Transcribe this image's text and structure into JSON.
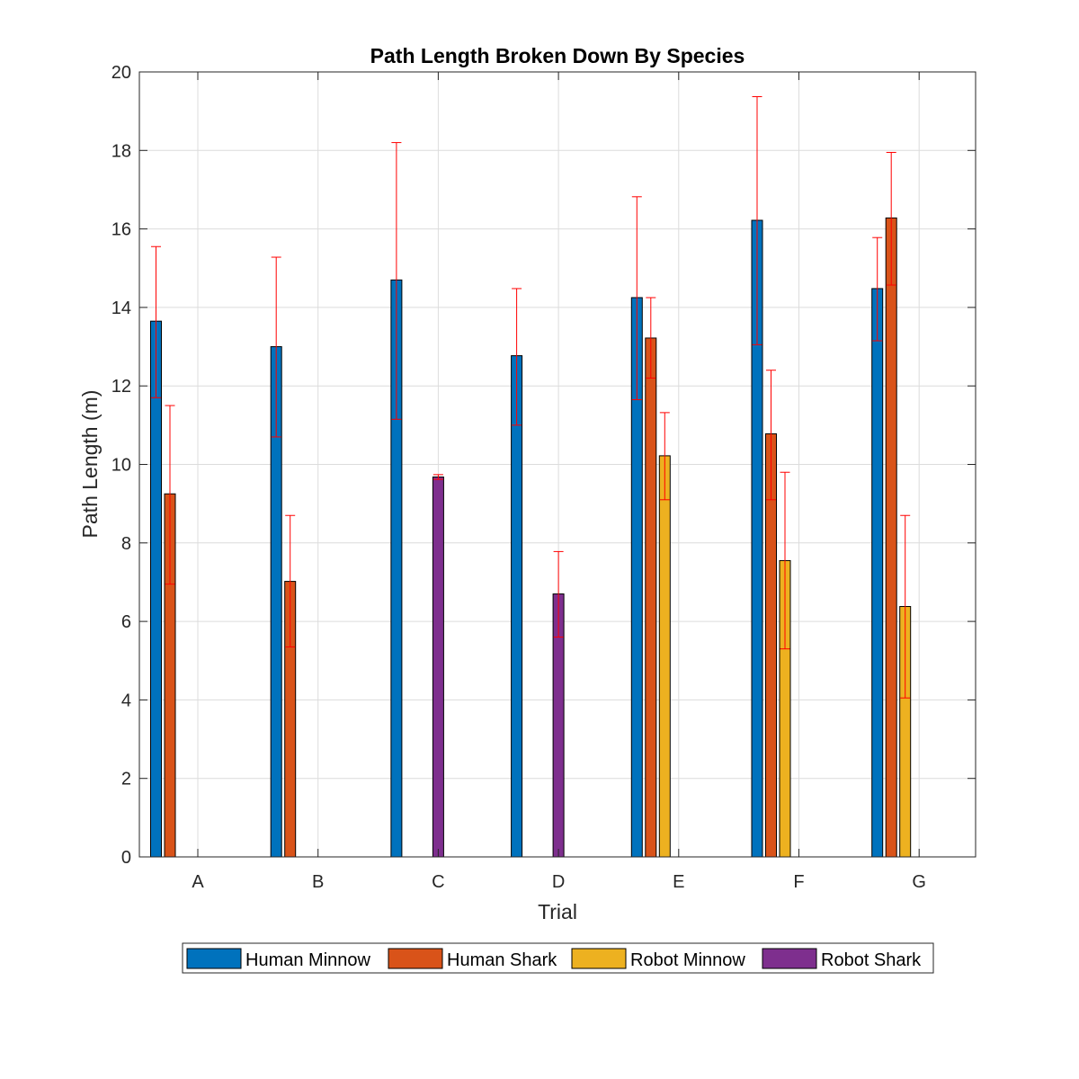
{
  "chart_data": {
    "type": "bar",
    "title": "Path Length Broken Down By Species",
    "xlabel": "Trial",
    "ylabel": "Path Length (m)",
    "categories": [
      "A",
      "B",
      "C",
      "D",
      "E",
      "F",
      "G"
    ],
    "ylim": [
      0,
      20
    ],
    "yticks": [
      0,
      2,
      4,
      6,
      8,
      10,
      12,
      14,
      16,
      18,
      20
    ],
    "grid": true,
    "legend_position": "bottom-outside",
    "series": [
      {
        "name": "Human Minnow",
        "color": "#0072BD",
        "values": [
          13.65,
          13.0,
          14.7,
          12.77,
          14.25,
          16.22,
          14.48
        ],
        "error_low": [
          11.7,
          10.7,
          11.15,
          11.0,
          11.65,
          13.05,
          13.15
        ],
        "error_high": [
          15.55,
          15.28,
          18.2,
          14.48,
          16.82,
          19.37,
          15.78
        ]
      },
      {
        "name": "Human Shark",
        "color": "#D95319",
        "values": [
          9.25,
          7.02,
          null,
          null,
          13.22,
          10.78,
          16.28
        ],
        "error_low": [
          6.95,
          5.35,
          null,
          null,
          12.2,
          9.1,
          14.57
        ],
        "error_high": [
          11.5,
          8.7,
          null,
          null,
          14.25,
          12.4,
          17.95
        ]
      },
      {
        "name": "Robot Minnow",
        "color": "#EDB120",
        "values": [
          null,
          null,
          null,
          null,
          10.22,
          7.55,
          6.38
        ],
        "error_low": [
          null,
          null,
          null,
          null,
          9.1,
          5.3,
          4.05
        ],
        "error_high": [
          null,
          null,
          null,
          null,
          11.32,
          9.8,
          8.7
        ]
      },
      {
        "name": "Robot Shark",
        "color": "#7E2F8E",
        "values": [
          null,
          null,
          9.68,
          6.7,
          null,
          null,
          null
        ],
        "error_low": [
          null,
          null,
          9.62,
          5.6,
          null,
          null,
          null
        ],
        "error_high": [
          null,
          null,
          9.74,
          7.78,
          null,
          null,
          null
        ]
      }
    ],
    "error_bar_color": "#FF0000"
  }
}
